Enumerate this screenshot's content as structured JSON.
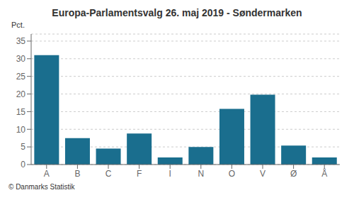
{
  "chart_data": {
    "type": "bar",
    "title": "Europa-Parlamentsvalg 26. maj 2019 - Søndermarken",
    "categories": [
      "A",
      "B",
      "C",
      "F",
      "I",
      "N",
      "O",
      "V",
      "Ø",
      "Å"
    ],
    "values": [
      31.0,
      7.5,
      4.5,
      8.8,
      2.0,
      5.0,
      15.8,
      19.8,
      5.4,
      2.0
    ],
    "color": "#1a6e8e",
    "ylabel": "Pct.",
    "ylim": [
      0,
      37
    ],
    "yticks": [
      0,
      5,
      10,
      15,
      20,
      25,
      30,
      35
    ],
    "grid": true,
    "footer": "© Danmarks Statistik"
  }
}
